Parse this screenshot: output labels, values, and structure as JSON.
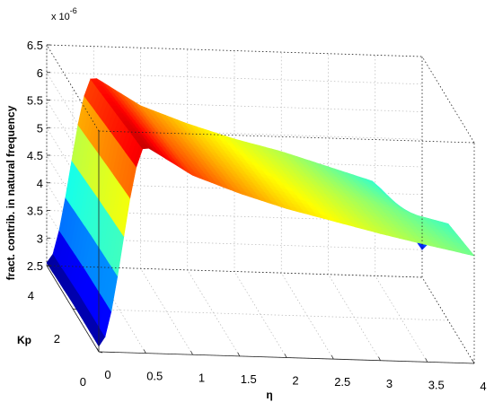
{
  "chart_data": {
    "type": "surface",
    "multiplier_base": "x 10",
    "multiplier_exponent": "-6",
    "xlabel": "η",
    "ylabel": "Kp",
    "zlabel": "fract. contrib. in natural frequency",
    "xlim": [
      0,
      4
    ],
    "ylim": [
      0,
      4
    ],
    "zlim": [
      2.5,
      6.5
    ],
    "x_ticks": [
      "0",
      "0.5",
      "1",
      "1.5",
      "2",
      "2.5",
      "3",
      "3.5",
      "4"
    ],
    "y_ticks": [
      "0",
      "2",
      "4"
    ],
    "z_ticks": [
      "2.5",
      "3",
      "3.5",
      "4",
      "4.5",
      "5",
      "5.5",
      "6",
      "6.5"
    ],
    "grid": true,
    "colormap": "jet",
    "eta": [
      0,
      0.5,
      1,
      1.5,
      2,
      2.5,
      3,
      3.5,
      4
    ],
    "kp": [
      0,
      2,
      4
    ],
    "values": [
      [
        2.6,
        6.25,
        5.75,
        5.45,
        5.2,
        5.0,
        4.8,
        4.62,
        4.45
      ],
      [
        2.6,
        6.1,
        5.6,
        5.3,
        5.05,
        4.85,
        4.65,
        4.45,
        4.25
      ],
      [
        2.55,
        5.95,
        5.45,
        5.15,
        4.9,
        4.7,
        4.45,
        4.2,
        3.0
      ]
    ]
  }
}
